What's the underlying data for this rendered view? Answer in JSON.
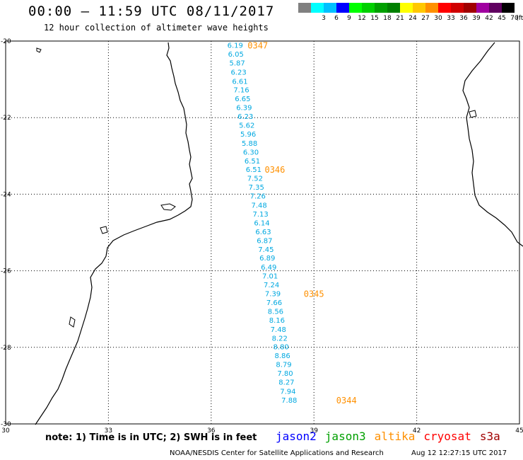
{
  "header": {
    "title": "00:00 – 11:59 UTC 08/11/2017",
    "subtitle": "12 hour collection of altimeter wave heights"
  },
  "legend": {
    "swatches": [
      {
        "color": "#808080",
        "label": ""
      },
      {
        "color": "#00ffff",
        "label": "3"
      },
      {
        "color": "#00c0ff",
        "label": "6"
      },
      {
        "color": "#0000ff",
        "label": "9"
      },
      {
        "color": "#00ff00",
        "label": "12"
      },
      {
        "color": "#00d000",
        "label": "15"
      },
      {
        "color": "#00a000",
        "label": "18"
      },
      {
        "color": "#008000",
        "label": "21"
      },
      {
        "color": "#ffff00",
        "label": "24"
      },
      {
        "color": "#ffc800",
        "label": "27"
      },
      {
        "color": "#ff9000",
        "label": "30"
      },
      {
        "color": "#ff0000",
        "label": "33"
      },
      {
        "color": "#d00000",
        "label": "36"
      },
      {
        "color": "#a00000",
        "label": "39"
      },
      {
        "color": "#a000a0",
        "label": "42"
      },
      {
        "color": "#600060",
        "label": "45"
      },
      {
        "color": "#000000",
        "label": "70"
      }
    ],
    "unit": "(ft)"
  },
  "map": {
    "lat_labels": [
      "-20",
      "-22",
      "-24",
      "-26",
      "-28",
      "-30"
    ],
    "lon_labels": [
      "30",
      "33",
      "36",
      "39",
      "42",
      "45"
    ],
    "grid": true,
    "colors": {
      "track": "#00a8e0",
      "time": "#ff9000",
      "coast": "#000000"
    },
    "track_values": [
      {
        "lon": 36.7,
        "lat": -20.1,
        "value": "6.19"
      },
      {
        "lon": 36.72,
        "lat": -20.33,
        "value": "6.05"
      },
      {
        "lon": 36.76,
        "lat": -20.56,
        "value": "5.87"
      },
      {
        "lon": 36.8,
        "lat": -20.8,
        "value": "6.23"
      },
      {
        "lon": 36.84,
        "lat": -21.04,
        "value": "6.61"
      },
      {
        "lon": 36.88,
        "lat": -21.27,
        "value": "7.16"
      },
      {
        "lon": 36.92,
        "lat": -21.5,
        "value": "6.65"
      },
      {
        "lon": 36.96,
        "lat": -21.73,
        "value": "6.39"
      },
      {
        "lon": 37.0,
        "lat": -21.96,
        "value": "6.23"
      },
      {
        "lon": 37.04,
        "lat": -22.19,
        "value": "5.62"
      },
      {
        "lon": 37.08,
        "lat": -22.42,
        "value": "5.96"
      },
      {
        "lon": 37.12,
        "lat": -22.66,
        "value": "5.88"
      },
      {
        "lon": 37.16,
        "lat": -22.89,
        "value": "6.30"
      },
      {
        "lon": 37.2,
        "lat": -23.12,
        "value": "6.51"
      },
      {
        "lon": 37.24,
        "lat": -23.35,
        "value": "6.51"
      },
      {
        "lon": 37.28,
        "lat": -23.58,
        "value": "7.52"
      },
      {
        "lon": 37.32,
        "lat": -23.81,
        "value": "7.35"
      },
      {
        "lon": 37.36,
        "lat": -24.04,
        "value": "7.26"
      },
      {
        "lon": 37.4,
        "lat": -24.28,
        "value": "7.48"
      },
      {
        "lon": 37.44,
        "lat": -24.51,
        "value": "7.13"
      },
      {
        "lon": 37.48,
        "lat": -24.74,
        "value": "6.14"
      },
      {
        "lon": 37.52,
        "lat": -24.97,
        "value": "6.63"
      },
      {
        "lon": 37.56,
        "lat": -25.2,
        "value": "6.87"
      },
      {
        "lon": 37.6,
        "lat": -25.43,
        "value": "7.45"
      },
      {
        "lon": 37.64,
        "lat": -25.66,
        "value": "6.89"
      },
      {
        "lon": 37.68,
        "lat": -25.9,
        "value": "6.49"
      },
      {
        "lon": 37.72,
        "lat": -26.13,
        "value": "7.01"
      },
      {
        "lon": 37.76,
        "lat": -26.36,
        "value": "7.24"
      },
      {
        "lon": 37.8,
        "lat": -26.59,
        "value": "7.39"
      },
      {
        "lon": 37.84,
        "lat": -26.82,
        "value": "7.66"
      },
      {
        "lon": 37.88,
        "lat": -27.05,
        "value": "8.56"
      },
      {
        "lon": 37.92,
        "lat": -27.28,
        "value": "8.16"
      },
      {
        "lon": 37.96,
        "lat": -27.52,
        "value": "7.48"
      },
      {
        "lon": 38.0,
        "lat": -27.75,
        "value": "8.22"
      },
      {
        "lon": 38.04,
        "lat": -27.98,
        "value": "8.80"
      },
      {
        "lon": 38.08,
        "lat": -28.21,
        "value": "8.86"
      },
      {
        "lon": 38.12,
        "lat": -28.44,
        "value": "8.79"
      },
      {
        "lon": 38.16,
        "lat": -28.67,
        "value": "7.80"
      },
      {
        "lon": 38.2,
        "lat": -28.9,
        "value": "8.27"
      },
      {
        "lon": 38.24,
        "lat": -29.14,
        "value": "7.94"
      },
      {
        "lon": 38.28,
        "lat": -29.37,
        "value": "7.88"
      }
    ],
    "time_stamps": [
      {
        "lon": 37.36,
        "lat": -20.1,
        "value": "0347"
      },
      {
        "lon": 37.86,
        "lat": -23.35,
        "value": "0346"
      },
      {
        "lon": 39.0,
        "lat": -26.59,
        "value": "0345"
      },
      {
        "lon": 39.95,
        "lat": -29.37,
        "value": "0344"
      }
    ]
  },
  "footer": {
    "note": "note: 1) Time is in UTC; 2) SWH is in feet",
    "missions": [
      {
        "name": "jason2",
        "color": "#0000ff"
      },
      {
        "name": "jason3",
        "color": "#00a000"
      },
      {
        "name": "altika",
        "color": "#ff9000"
      },
      {
        "name": "cryosat",
        "color": "#ff0000"
      },
      {
        "name": "s3a",
        "color": "#a00000"
      }
    ],
    "credit": "NOAA/NESDIS Center for Satellite Applications and Research",
    "timestamp": "Aug 12 12:27:15 UTC 2017"
  }
}
